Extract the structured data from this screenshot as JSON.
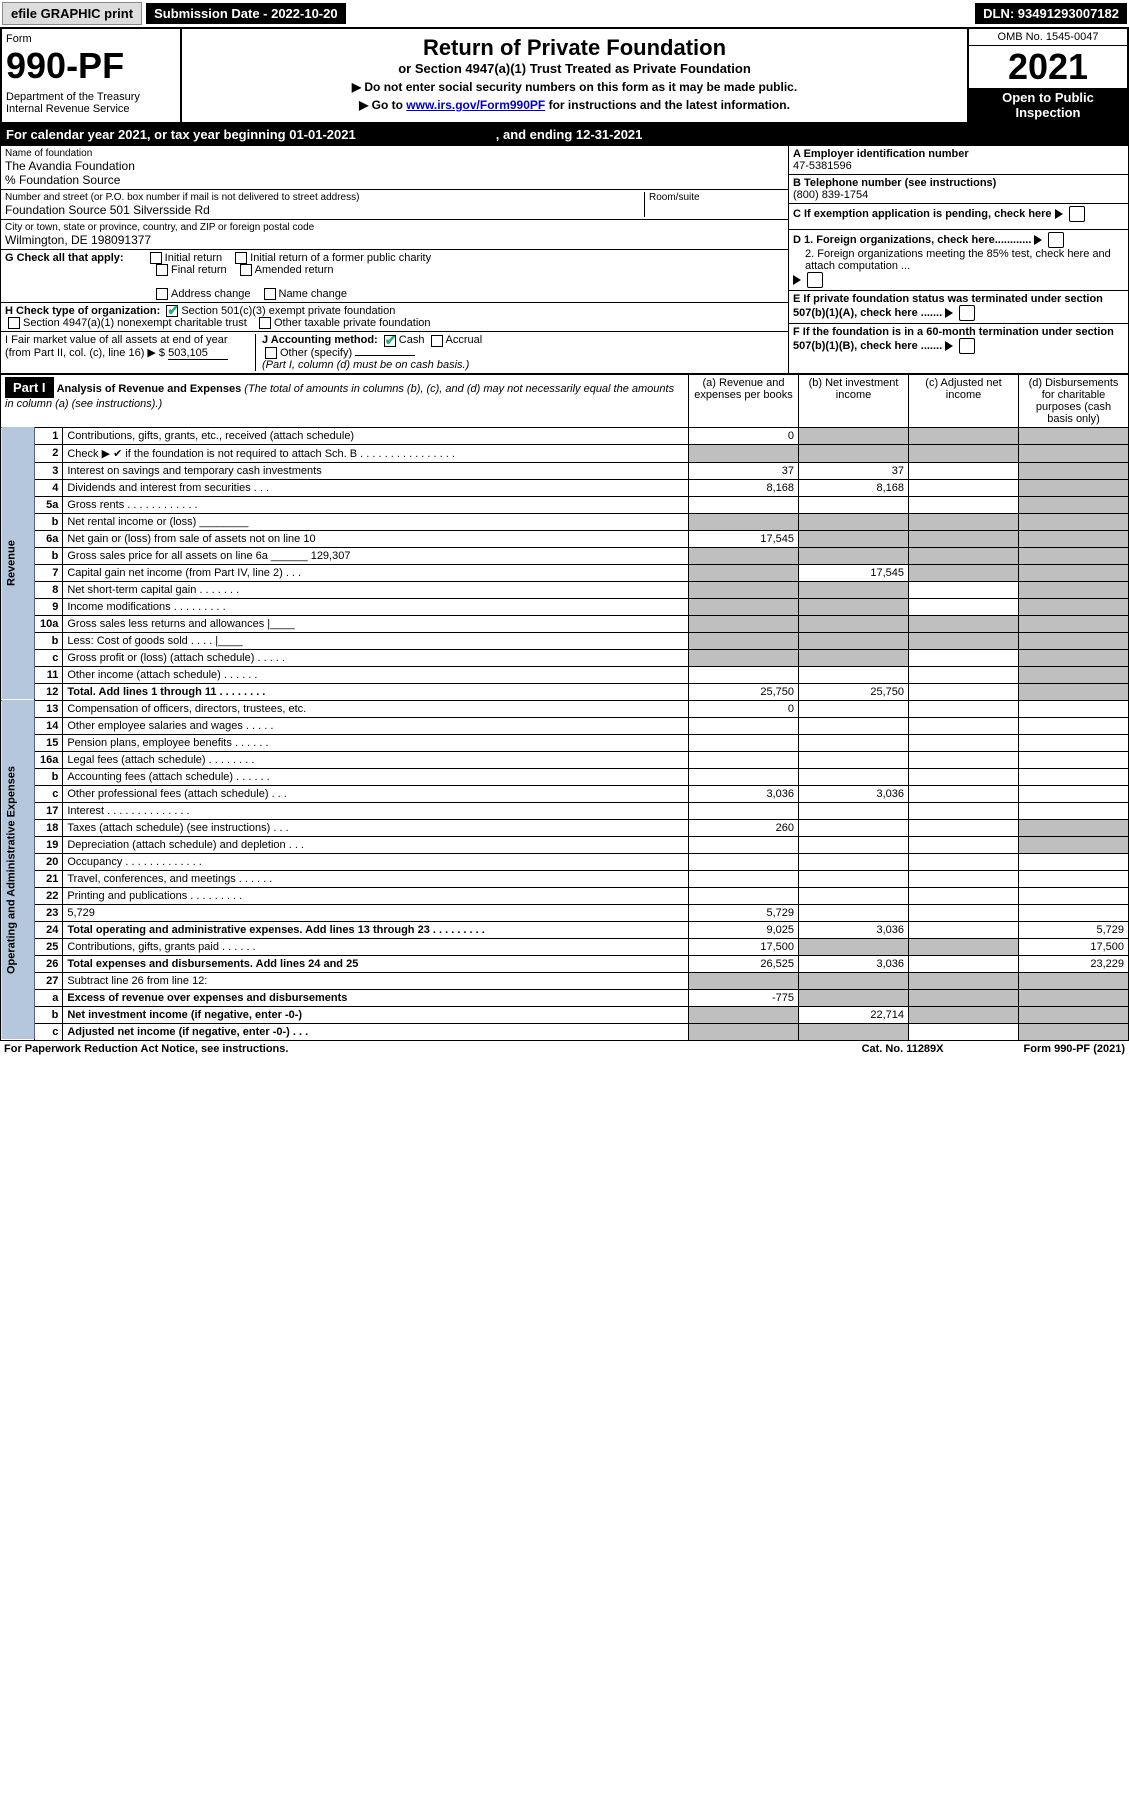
{
  "topbar": {
    "efile": "efile GRAPHIC print",
    "submission": "Submission Date - 2022-10-20",
    "dln": "DLN: 93491293007182"
  },
  "header": {
    "form_label": "Form",
    "form_no": "990-PF",
    "dept": "Department of the Treasury\nInternal Revenue Service",
    "title": "Return of Private Foundation",
    "subtitle": "or Section 4947(a)(1) Trust Treated as Private Foundation",
    "instr1": "▶ Do not enter social security numbers on this form as it may be made public.",
    "instr2_pre": "▶ Go to ",
    "instr2_link": "www.irs.gov/Form990PF",
    "instr2_post": " for instructions and the latest information.",
    "omb": "OMB No. 1545-0047",
    "year": "2021",
    "open": "Open to Public Inspection"
  },
  "cal": {
    "pre": "For calendar year 2021, or tax year beginning 01-01-2021",
    "mid": ", and ending 12-31-2021"
  },
  "info": {
    "name_lbl": "Name of foundation",
    "name": "The Avandia Foundation",
    "care": "% Foundation Source",
    "addr_lbl": "Number and street (or P.O. box number if mail is not delivered to street address)",
    "addr": "Foundation Source 501 Silversside Rd",
    "room_lbl": "Room/suite",
    "city_lbl": "City or town, state or province, country, and ZIP or foreign postal code",
    "city": "Wilmington, DE  198091377",
    "a_lbl": "A Employer identification number",
    "a_val": "47-5381596",
    "b_lbl": "B Telephone number (see instructions)",
    "b_val": "(800) 839-1754",
    "c_lbl": "C If exemption application is pending, check here",
    "d1": "D 1. Foreign organizations, check here............",
    "d2": "2. Foreign organizations meeting the 85% test, check here and attach computation ...",
    "e": "E  If private foundation status was terminated under section 507(b)(1)(A), check here .......",
    "f": "F  If the foundation is in a 60-month termination under section 507(b)(1)(B), check here .......",
    "g_lbl": "G Check all that apply:",
    "g_opts": [
      "Initial return",
      "Final return",
      "Address change",
      "Initial return of a former public charity",
      "Amended return",
      "Name change"
    ],
    "h_lbl": "H Check type of organization:",
    "h1": "Section 501(c)(3) exempt private foundation",
    "h2": "Section 4947(a)(1) nonexempt charitable trust",
    "h3": "Other taxable private foundation",
    "i_lbl": "I Fair market value of all assets at end of year (from Part II, col. (c), line 16) ▶ $",
    "i_val": "503,105",
    "j_lbl": "J Accounting method:",
    "j_cash": "Cash",
    "j_accr": "Accrual",
    "j_other": "Other (specify)",
    "j_note": "(Part I, column (d) must be on cash basis.)"
  },
  "part1": {
    "hdr": "Part I",
    "title": "Analysis of Revenue and Expenses",
    "title_note": "(The total of amounts in columns (b), (c), and (d) may not necessarily equal the amounts in column (a) (see instructions).)",
    "col_a": "(a)  Revenue and expenses per books",
    "col_b": "(b)  Net investment income",
    "col_c": "(c)  Adjusted net income",
    "col_d": "(d)  Disbursements for charitable purposes (cash basis only)"
  },
  "side_rev": "Revenue",
  "side_exp": "Operating and Administrative Expenses",
  "rows": [
    {
      "n": "1",
      "d": "Contributions, gifts, grants, etc., received (attach schedule)",
      "a": "0",
      "b_g": true,
      "c_g": true,
      "d_g": true
    },
    {
      "n": "2",
      "d": "Check ▶ ✔ if the foundation is not required to attach Sch. B    .  .  .  .  .  .  .  .  .  .  .  .  .  .  .  .",
      "a_g": true,
      "b_g": true,
      "c_g": true,
      "d_g": true
    },
    {
      "n": "3",
      "d": "Interest on savings and temporary cash investments",
      "a": "37",
      "b": "37",
      "d_g": true
    },
    {
      "n": "4",
      "d": "Dividends and interest from securities    .   .   .",
      "a": "8,168",
      "b": "8,168",
      "d_g": true
    },
    {
      "n": "5a",
      "d": "Gross rents    .   .   .   .   .   .   .   .   .   .   .   .",
      "d_g": true
    },
    {
      "n": "b",
      "d": "Net rental income or (loss)  ________",
      "a_g": true,
      "b_g": true,
      "c_g": true,
      "d_g": true
    },
    {
      "n": "6a",
      "d": "Net gain or (loss) from sale of assets not on line 10",
      "a": "17,545",
      "b_g": true,
      "c_g": true,
      "d_g": true
    },
    {
      "n": "b",
      "d": "Gross sales price for all assets on line 6a ______ 129,307",
      "a_g": true,
      "b_g": true,
      "c_g": true,
      "d_g": true
    },
    {
      "n": "7",
      "d": "Capital gain net income (from Part IV, line 2)   .   .   .",
      "a_g": true,
      "b": "17,545",
      "c_g": true,
      "d_g": true
    },
    {
      "n": "8",
      "d": "Net short-term capital gain   .   .   .   .   .   .   .",
      "a_g": true,
      "b_g": true,
      "d_g": true
    },
    {
      "n": "9",
      "d": "Income modifications   .   .   .   .   .   .   .   .   .",
      "a_g": true,
      "b_g": true,
      "d_g": true
    },
    {
      "n": "10a",
      "d": "Gross sales less returns and allowances  |____",
      "a_g": true,
      "b_g": true,
      "c_g": true,
      "d_g": true
    },
    {
      "n": "b",
      "d": "Less: Cost of goods sold     .   .   .   .   |____",
      "a_g": true,
      "b_g": true,
      "c_g": true,
      "d_g": true
    },
    {
      "n": "c",
      "d": "Gross profit or (loss) (attach schedule)    .   .   .   .   .",
      "a_g": true,
      "b_g": true,
      "d_g": true
    },
    {
      "n": "11",
      "d": "Other income (attach schedule)    .   .   .   .   .   .",
      "d_g": true
    },
    {
      "n": "12",
      "d": "Total. Add lines 1 through 11   .   .   .   .   .   .   .   .",
      "bold": true,
      "a": "25,750",
      "b": "25,750",
      "d_g": true
    }
  ],
  "exp_rows": [
    {
      "n": "13",
      "d": "Compensation of officers, directors, trustees, etc.",
      "a": "0"
    },
    {
      "n": "14",
      "d": "Other employee salaries and wages   .   .   .   .   ."
    },
    {
      "n": "15",
      "d": "Pension plans, employee benefits   .   .   .   .   .   ."
    },
    {
      "n": "16a",
      "d": "Legal fees (attach schedule)  .   .   .   .   .   .   .   ."
    },
    {
      "n": "b",
      "d": "Accounting fees (attach schedule)  .   .   .   .   .   ."
    },
    {
      "n": "c",
      "d": "Other professional fees (attach schedule)    .   .   .",
      "a": "3,036",
      "b": "3,036"
    },
    {
      "n": "17",
      "d": "Interest  .   .   .   .   .   .   .   .   .   .   .   .   .   ."
    },
    {
      "n": "18",
      "d": "Taxes (attach schedule) (see instructions)    .   .   .",
      "a": "260",
      "d_g": true
    },
    {
      "n": "19",
      "d": "Depreciation (attach schedule) and depletion    .   .   .",
      "d_g": true
    },
    {
      "n": "20",
      "d": "Occupancy  .   .   .   .   .   .   .   .   .   .   .   .   ."
    },
    {
      "n": "21",
      "d": "Travel, conferences, and meetings  .   .   .   .   .   ."
    },
    {
      "n": "22",
      "d": "Printing and publications  .   .   .   .   .   .   .   .   ."
    },
    {
      "n": "23",
      "d": "5,729",
      "a": "5,729"
    },
    {
      "n": "24",
      "d": "Total operating and administrative expenses. Add lines 13 through 23   .   .   .   .   .   .   .   .   .",
      "bold": true,
      "a": "9,025",
      "b": "3,036",
      "dd": "5,729"
    },
    {
      "n": "25",
      "d": "Contributions, gifts, grants paid    .   .   .   .   .   .",
      "a": "17,500",
      "b_g": true,
      "c_g": true,
      "dd": "17,500"
    },
    {
      "n": "26",
      "d": "Total expenses and disbursements. Add lines 24 and 25",
      "bold": true,
      "a": "26,525",
      "b": "3,036",
      "dd": "23,229"
    },
    {
      "n": "27",
      "d": "Subtract line 26 from line 12:",
      "a_g": true,
      "b_g": true,
      "c_g": true,
      "d_g": true
    },
    {
      "n": "a",
      "d": "Excess of revenue over expenses and disbursements",
      "bold": true,
      "a": "-775",
      "b_g": true,
      "c_g": true,
      "d_g": true
    },
    {
      "n": "b",
      "d": "Net investment income (if negative, enter -0-)",
      "bold": true,
      "a_g": true,
      "b": "22,714",
      "c_g": true,
      "d_g": true
    },
    {
      "n": "c",
      "d": "Adjusted net income (if negative, enter -0-)   .   .   .",
      "bold": true,
      "a_g": true,
      "b_g": true,
      "d_g": true
    }
  ],
  "footer": {
    "left": "For Paperwork Reduction Act Notice, see instructions.",
    "mid": "Cat. No. 11289X",
    "right": "Form 990-PF (2021)"
  }
}
